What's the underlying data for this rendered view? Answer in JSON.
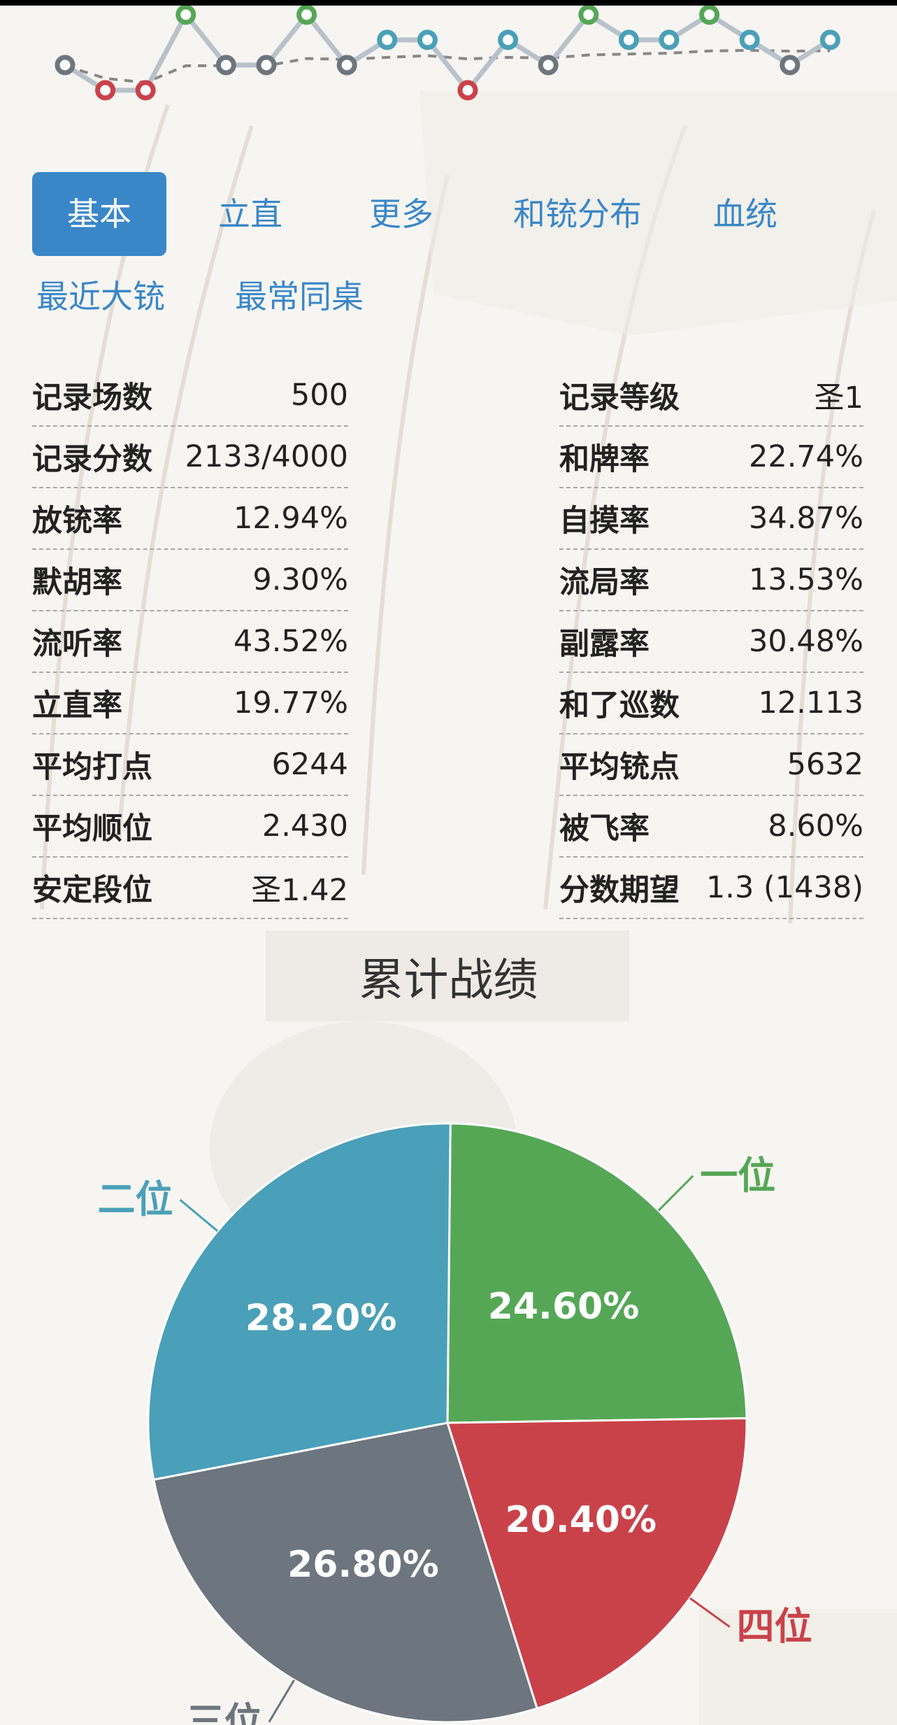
{
  "tabs": [
    {
      "label": "基本",
      "active": true
    },
    {
      "label": "立直",
      "active": false
    },
    {
      "label": "更多",
      "active": false
    },
    {
      "label": "和铳分布",
      "active": false
    },
    {
      "label": "血统",
      "active": false
    },
    {
      "label": "最近大铳",
      "active": false
    },
    {
      "label": "最常同桌",
      "active": false
    }
  ],
  "stats_left": [
    {
      "label": "记录场数",
      "value": "500"
    },
    {
      "label": "记录分数",
      "value": "2133/4000"
    },
    {
      "label": "放铳率",
      "value": "12.94%"
    },
    {
      "label": "默胡率",
      "value": "9.30%"
    },
    {
      "label": "流听率",
      "value": "43.52%"
    },
    {
      "label": "立直率",
      "value": "19.77%"
    },
    {
      "label": "平均打点",
      "value": "6244"
    },
    {
      "label": "平均顺位",
      "value": "2.430"
    },
    {
      "label": "安定段位",
      "value": "圣1.42"
    }
  ],
  "stats_right": [
    {
      "label": "记录等级",
      "value": "圣1"
    },
    {
      "label": "和牌率",
      "value": "22.74%"
    },
    {
      "label": "自摸率",
      "value": "34.87%"
    },
    {
      "label": "流局率",
      "value": "13.53%"
    },
    {
      "label": "副露率",
      "value": "30.48%"
    },
    {
      "label": "和了巡数",
      "value": "12.113"
    },
    {
      "label": "平均铳点",
      "value": "5632"
    },
    {
      "label": "被飞率",
      "value": "8.60%"
    },
    {
      "label": "分数期望",
      "value": "1.3 (1438)"
    }
  ],
  "colors": {
    "accent": "#3a87c8",
    "first": "#55a756",
    "second": "#4aa0b8",
    "third": "#6d757e",
    "fourth": "#c9424a"
  },
  "chart_data": [
    {
      "type": "line",
      "x": [
        1,
        2,
        3,
        4,
        5,
        6,
        7,
        8,
        9,
        10,
        11,
        12,
        13,
        14,
        15,
        16,
        17,
        18,
        19,
        20
      ],
      "series": [
        {
          "values": [
            3,
            4,
            4,
            1,
            3,
            3,
            1,
            3,
            2,
            2,
            4,
            2,
            3,
            1,
            2,
            2,
            1,
            2,
            3,
            2
          ]
        }
      ],
      "point_rank_colors": {
        "1": "#55a756",
        "2": "#4aa0b8",
        "3": "#6d757e",
        "4": "#c9424a"
      },
      "ylim": [
        4,
        1
      ],
      "trend_dashed": true
    },
    {
      "type": "pie",
      "title": "累计战绩",
      "categories": [
        "一位",
        "二位",
        "三位",
        "四位"
      ],
      "values": [
        24.6,
        28.2,
        26.8,
        20.4
      ],
      "value_labels": [
        "24.60%",
        "28.20%",
        "26.80%",
        "20.40%"
      ],
      "colors": [
        "#55a756",
        "#4aa0b8",
        "#6d757e",
        "#c9424a"
      ]
    }
  ]
}
